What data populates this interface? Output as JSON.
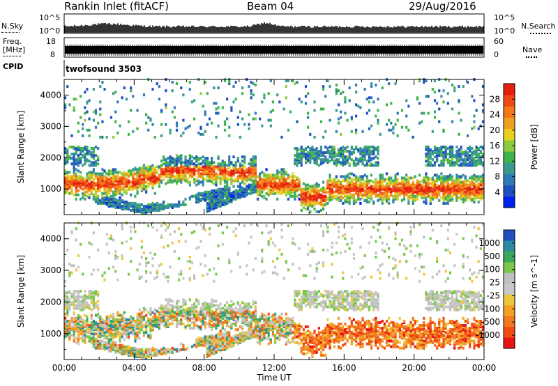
{
  "header": {
    "title": "Rankin Inlet (fitACF)",
    "beam": "Beam 04",
    "date": "29/Aug/2016"
  },
  "strips": {
    "nsky_label": "N.Sky",
    "nsearch_label": "N.Search",
    "nsky_ticks": [
      "10^5",
      "10^0"
    ],
    "nsky_right_ticks": [
      "10^5",
      "10^0"
    ],
    "freq_label": "Freq.",
    "freq_unit": "[MHz]",
    "freq_ticks": [
      "18",
      "8"
    ],
    "nave_label": "Nave",
    "nave_ticks": [
      "60",
      "0"
    ],
    "cpid_label": "CPID",
    "cpid_value": "twofsound 3503"
  },
  "colors": {
    "power": [
      "#0020f0",
      "#2050c0",
      "#2e7ab6",
      "#3c9a8c",
      "#3cb44a",
      "#8ccc3c",
      "#e8d020",
      "#f0a020",
      "#f47818",
      "#f04a14",
      "#e42010"
    ],
    "velocity": [
      "#e81414",
      "#f04c14",
      "#f4781c",
      "#f4a028",
      "#ecc840",
      "#c8c8c8",
      "#c0c0c0",
      "#7cc84a",
      "#3aa85a",
      "#2e8aa0",
      "#2050c0"
    ]
  },
  "chart_data": [
    {
      "type": "heatmap",
      "name": "power",
      "xlabel": "",
      "ylabel": "Slant Range [km]",
      "x_ticks": [],
      "y_ticks": [
        "1000",
        "2000",
        "3000",
        "4000"
      ],
      "xlim": [
        0,
        24
      ],
      "ylim": [
        180,
        4500
      ],
      "colorbar": {
        "label": "Power [dB]",
        "ticks": [
          "4",
          "8",
          "12",
          "16",
          "20",
          "24",
          "28"
        ],
        "range": [
          0,
          32
        ]
      }
    },
    {
      "type": "heatmap",
      "name": "velocity",
      "xlabel": "Time UT",
      "ylabel": "Slant Range [km]",
      "x_ticks": [
        "00:00",
        "04:00",
        "08:00",
        "12:00",
        "16:00",
        "20:00",
        "00:00"
      ],
      "y_ticks": [
        "1000",
        "2000",
        "3000",
        "4000"
      ],
      "xlim": [
        0,
        24
      ],
      "ylim": [
        180,
        4500
      ],
      "colorbar": {
        "label": "Velocity [m s^-1]",
        "ticks": [
          "1000",
          "500",
          "100",
          "25",
          "-25",
          "-100",
          "-500",
          "-1000"
        ]
      }
    }
  ]
}
